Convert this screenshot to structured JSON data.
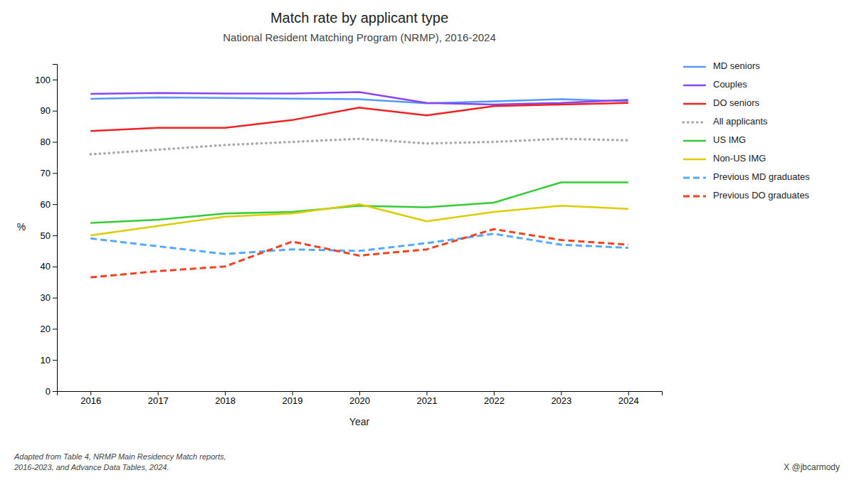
{
  "chart_data": {
    "type": "line",
    "title": "Match rate by applicant type",
    "subtitle": "National Resident Matching Program (NRMP), 2016-2024",
    "xlabel": "Year",
    "ylabel": "%",
    "x": [
      2016,
      2017,
      2018,
      2019,
      2020,
      2021,
      2022,
      2023,
      2024
    ],
    "xlim": [
      2015.5,
      2024.5
    ],
    "xticks": [
      2016,
      2017,
      2018,
      2019,
      2020,
      2021,
      2022,
      2023,
      2024
    ],
    "ylim": [
      0,
      105
    ],
    "yticks": [
      0,
      10,
      20,
      30,
      40,
      50,
      60,
      70,
      80,
      90,
      100
    ],
    "grid": false,
    "legend": "right",
    "series": [
      {
        "name": "MD seniors",
        "color": "#5599ff",
        "line_style": "solid",
        "values": [
          93.8,
          94.3,
          94.1,
          93.9,
          93.7,
          92.4,
          93.0,
          93.7,
          93.0
        ]
      },
      {
        "name": "Couples",
        "color": "#8844ee",
        "line_style": "solid",
        "values": [
          95.4,
          95.7,
          95.5,
          95.5,
          96.0,
          92.5,
          92.0,
          92.5,
          93.5
        ]
      },
      {
        "name": "DO seniors",
        "color": "#ee2222",
        "line_style": "solid",
        "values": [
          83.5,
          84.5,
          84.5,
          87.0,
          91.0,
          88.5,
          91.5,
          92.0,
          92.5
        ]
      },
      {
        "name": "All applicants",
        "color": "#aaaaaa",
        "line_style": "dotted",
        "values": [
          76.0,
          77.5,
          79.0,
          80.0,
          81.0,
          79.5,
          80.0,
          81.0,
          80.5
        ]
      },
      {
        "name": "US IMG",
        "color": "#33cc33",
        "line_style": "solid",
        "values": [
          54.0,
          55.0,
          57.0,
          57.5,
          59.5,
          59.0,
          60.5,
          67.0,
          67.0
        ]
      },
      {
        "name": "Non-US IMG",
        "color": "#ddcc00",
        "line_style": "solid",
        "values": [
          50.0,
          53.0,
          56.0,
          57.0,
          60.0,
          54.5,
          57.5,
          59.5,
          58.5
        ]
      },
      {
        "name": "Previous MD graduates",
        "color": "#55aaff",
        "line_style": "dashed",
        "values": [
          49.0,
          46.5,
          44.0,
          45.5,
          45.0,
          47.5,
          50.5,
          47.0,
          46.0
        ]
      },
      {
        "name": "Previous DO graduates",
        "color": "#ee4422",
        "line_style": "dashed",
        "values": [
          36.5,
          38.5,
          40.0,
          48.0,
          43.5,
          45.5,
          52.0,
          48.5,
          47.0
        ]
      }
    ],
    "annotations": [
      "Adapted from Table 4, NRMP Main Residency Match reports,\n2016-2023, and Advance Data Tables, 2024.",
      "X  @jbcarmody"
    ]
  }
}
